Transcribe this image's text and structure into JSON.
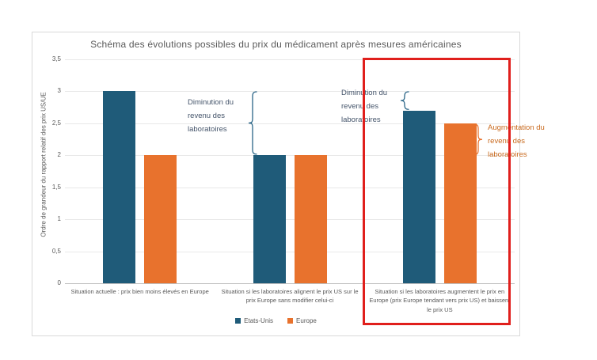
{
  "chart_data": {
    "type": "bar",
    "title": "Schéma des évolutions possibles du prix du médicament après mesures américaines",
    "ylabel": "Ordre de grandeur du rapport relatif des prix US/UE",
    "xlabel": "",
    "ylim": [
      0,
      3.5
    ],
    "ytick_step": 0.5,
    "yticks": [
      "3,5",
      "3",
      "2,5",
      "2",
      "1,5",
      "1",
      "0,5",
      "0"
    ],
    "grid": true,
    "legend_position": "bottom",
    "categories": [
      "Situation actuelle : prix bien moins élevés en Europe",
      "Situation si les laboratoires alignent le prix US sur le prix Europe sans modifier celui-ci",
      "Situation si les laboratoires augmentent le prix en Europe (prix Europe tendant vers prix US) et baissent le prix US"
    ],
    "series": [
      {
        "name": "Etats-Unis",
        "color": "#1f5b79",
        "values": [
          3,
          2,
          2.7
        ]
      },
      {
        "name": "Europe",
        "color": "#e8722d",
        "values": [
          2,
          2,
          2.5
        ]
      }
    ],
    "annotations": [
      {
        "id": "diminution-1",
        "text": "Diminution du revenu des laboratoires",
        "text_color": "#44546a",
        "brace_color": "#2a6587",
        "brace_side": "left",
        "value_from": 3,
        "value_to": 2
      },
      {
        "id": "diminution-2",
        "text": "Diminution du revenu des laboratoires",
        "text_color": "#44546a",
        "brace_color": "#2a6587",
        "brace_side": "left",
        "value_from": 3,
        "value_to": 2.7
      },
      {
        "id": "augmentation",
        "text": "Augmentation du revenu des laboratoires",
        "text_color": "#c96a1e",
        "brace_color": "#e8722d",
        "brace_side": "right",
        "value_from": 2.5,
        "value_to": 2
      }
    ],
    "highlight_box": {
      "color": "#e01f1c",
      "covers_category_index": 2
    }
  }
}
